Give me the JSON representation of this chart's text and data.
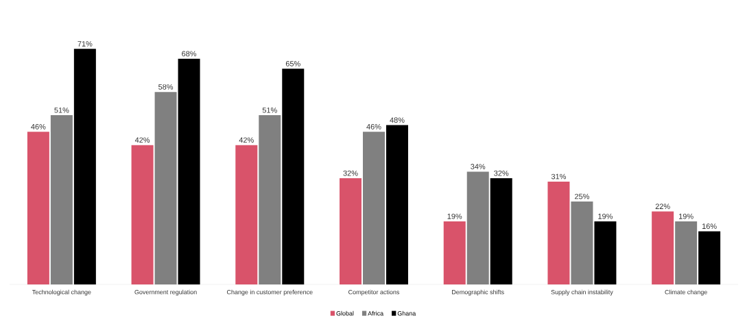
{
  "chart_data": {
    "type": "bar",
    "categories": [
      "Technological change",
      "Government regulation",
      "Change in customer preference",
      "Competitor actions",
      "Demographic shifts",
      "Supply chain instability",
      "Climate change"
    ],
    "series": [
      {
        "name": "Global",
        "color": "#d9536a",
        "values": [
          46,
          42,
          42,
          32,
          19,
          31,
          22
        ],
        "value_labels": [
          "46%",
          "42%",
          "42%",
          "32%",
          "19%",
          "31%",
          "22%"
        ]
      },
      {
        "name": "Africa",
        "color": "#808080",
        "values": [
          51,
          58,
          51,
          46,
          34,
          25,
          19
        ],
        "value_labels": [
          "51%",
          "58%",
          "51%",
          "46%",
          "34%",
          "25%",
          "19%"
        ]
      },
      {
        "name": "Ghana",
        "color": "#000000",
        "values": [
          71,
          68,
          65,
          48,
          32,
          19,
          16
        ],
        "value_labels": [
          "71%",
          "68%",
          "65%",
          "48%",
          "32%",
          "19%",
          "16%"
        ]
      }
    ],
    "legend": "bottom"
  }
}
